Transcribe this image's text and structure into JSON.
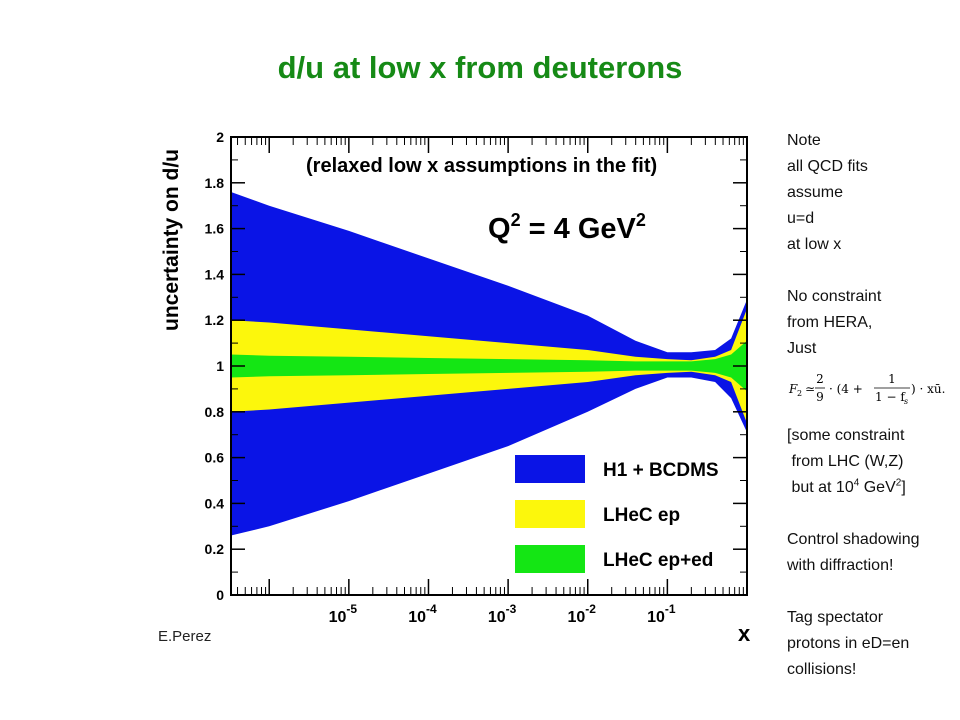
{
  "title": "d/u at low x from deuterons",
  "credit": "E.Perez",
  "notes": {
    "block1": [
      "Note",
      "all QCD fits",
      "assume",
      "u=d",
      "at low x"
    ],
    "block2": [
      "No constraint",
      "from HERA,",
      "Just"
    ],
    "formula": {
      "lhs": "F",
      "lhs_sub": "2",
      "approx": "≃",
      "num1": "2",
      "den1": "9",
      "mid": "· (4 +",
      "num2": "1",
      "den2": "1 − f",
      "den2_sub": "s",
      "tail": ") · xū."
    },
    "block3": {
      "l1": "[some constraint",
      "l2": " from LHC (W,Z)",
      "l3_pre": " but at 10",
      "l3_sup": "4",
      "l3_mid": " GeV",
      "l3_sup2": "2",
      "l3_post": "]"
    },
    "block4": [
      "Control shadowing",
      "with diffraction!"
    ],
    "block5": [
      "Tag spectator",
      "protons in eD=en",
      "collisions!"
    ]
  },
  "chart_data": {
    "type": "area",
    "ylabel": "uncertainty on d/u",
    "xlabel": "x",
    "annotation": "(relaxed low x assumptions in the fit)",
    "q2_label": {
      "pre": "Q",
      "sup": "2",
      "mid": " = 4 GeV",
      "sup2": "2"
    },
    "x_scale": "log",
    "xlim_log10": [
      -6.48,
      0
    ],
    "ylim": [
      0,
      2
    ],
    "y_ticks": [
      0,
      0.2,
      0.4,
      0.6,
      0.8,
      1,
      1.2,
      1.4,
      1.6,
      1.8,
      2
    ],
    "y_tick_labels": [
      "0",
      "0.2",
      "0.4",
      "0.6",
      "0.8",
      "1",
      "1.2",
      "1.4",
      "1.6",
      "1.8",
      "2"
    ],
    "x_ticks": [
      {
        "log10": -5,
        "base": "10",
        "exp": "-5"
      },
      {
        "log10": -4,
        "base": "10",
        "exp": "-4"
      },
      {
        "log10": -3,
        "base": "10",
        "exp": "-3"
      },
      {
        "log10": -2,
        "base": "10",
        "exp": "-2"
      },
      {
        "log10": -1,
        "base": "10",
        "exp": "-1"
      }
    ],
    "legend_position": "bottom-right",
    "series": [
      {
        "name": "H1 + BCDMS",
        "color": "#0a14e6",
        "x_log10": [
          -6.48,
          -6.0,
          -5.0,
          -4.0,
          -3.0,
          -2.0,
          -1.4,
          -1.0,
          -0.7,
          -0.4,
          -0.2,
          0.0
        ],
        "upper": [
          1.76,
          1.7,
          1.59,
          1.47,
          1.35,
          1.22,
          1.11,
          1.06,
          1.06,
          1.07,
          1.12,
          1.29
        ],
        "lower": [
          0.26,
          0.3,
          0.41,
          0.53,
          0.65,
          0.8,
          0.9,
          0.95,
          0.95,
          0.93,
          0.86,
          0.71
        ]
      },
      {
        "name": "LHeC ep",
        "color": "#fcf70c",
        "x_log10": [
          -6.48,
          -6.0,
          -5.0,
          -4.0,
          -3.0,
          -2.0,
          -1.4,
          -1.0,
          -0.7,
          -0.4,
          -0.2,
          0.0
        ],
        "upper": [
          1.2,
          1.19,
          1.16,
          1.13,
          1.1,
          1.07,
          1.04,
          1.03,
          1.025,
          1.04,
          1.07,
          1.25
        ],
        "lower": [
          0.8,
          0.81,
          0.84,
          0.87,
          0.9,
          0.93,
          0.96,
          0.97,
          0.975,
          0.96,
          0.93,
          0.75
        ]
      },
      {
        "name": "LHeC ep+ed",
        "color": "#14e614",
        "x_log10": [
          -6.48,
          -6.0,
          -5.0,
          -4.0,
          -3.0,
          -2.0,
          -1.4,
          -1.0,
          -0.7,
          -0.4,
          -0.2,
          0.0
        ],
        "upper": [
          1.05,
          1.045,
          1.04,
          1.035,
          1.03,
          1.025,
          1.02,
          1.02,
          1.02,
          1.03,
          1.05,
          1.11
        ],
        "lower": [
          0.95,
          0.955,
          0.96,
          0.965,
          0.97,
          0.975,
          0.98,
          0.98,
          0.98,
          0.97,
          0.95,
          0.89
        ]
      }
    ]
  }
}
